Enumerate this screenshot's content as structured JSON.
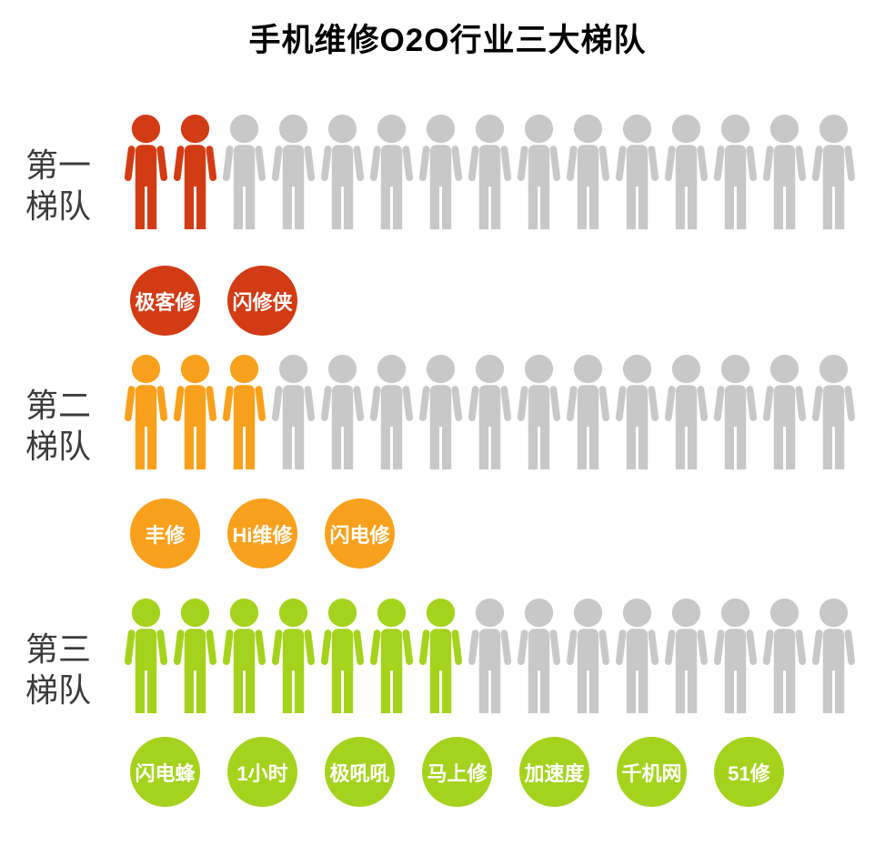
{
  "title": "手机维修O2O行业三大梯队",
  "icons_per_row": 15,
  "inactive_color": "#c8c8c8",
  "tiers": [
    {
      "name": "第一梯队",
      "label_line1": "第一",
      "label_line2": "梯队",
      "count": 2,
      "color": "#d23c15",
      "companies": [
        "极客修",
        "闪修侠"
      ]
    },
    {
      "name": "第二梯队",
      "label_line1": "第二",
      "label_line2": "梯队",
      "count": 3,
      "color": "#f9a11c",
      "companies": [
        "丰修",
        "Hi维修",
        "闪电修"
      ]
    },
    {
      "name": "第三梯队",
      "label_line1": "第三",
      "label_line2": "梯队",
      "count": 7,
      "color": "#a5d31d",
      "companies": [
        "闪电蜂",
        "1小时",
        "极吼吼",
        "马上修",
        "加速度",
        "千机网",
        "51修"
      ]
    }
  ],
  "chart_data": {
    "type": "pictograph",
    "title": "手机维修O2O行业三大梯队",
    "categories": [
      "第一梯队",
      "第二梯队",
      "第三梯队"
    ],
    "values": [
      2,
      3,
      7
    ],
    "icons_per_row": 15,
    "legend_position": "none",
    "series": [
      {
        "name": "第一梯队",
        "count": 2,
        "color": "#d23c15",
        "companies": [
          "极客修",
          "闪修侠"
        ]
      },
      {
        "name": "第二梯队",
        "count": 3,
        "color": "#f9a11c",
        "companies": [
          "丰修",
          "Hi维修",
          "闪电修"
        ]
      },
      {
        "name": "第三梯队",
        "count": 7,
        "color": "#a5d31d",
        "companies": [
          "闪电蜂",
          "1小时",
          "极吼吼",
          "马上修",
          "加速度",
          "千机网",
          "51修"
        ]
      }
    ]
  }
}
